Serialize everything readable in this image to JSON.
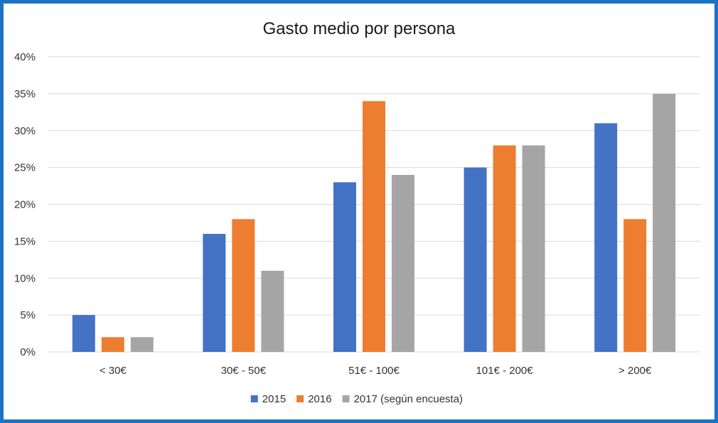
{
  "chart_data": {
    "type": "bar",
    "title": "Gasto medio por persona",
    "categories": [
      "< 30€",
      "30€ - 50€",
      "51€ - 100€",
      "101€ - 200€",
      "> 200€"
    ],
    "series": [
      {
        "name": "2015",
        "color": "#4472c4",
        "values": [
          5,
          16,
          23,
          25,
          31
        ]
      },
      {
        "name": "2016",
        "color": "#ed7d31",
        "values": [
          2,
          18,
          34,
          28,
          18
        ]
      },
      {
        "name": "2017 (según encuesta)",
        "color": "#a5a5a5",
        "values": [
          2,
          11,
          24,
          28,
          35
        ]
      }
    ],
    "yticks": [
      "0%",
      "5%",
      "10%",
      "15%",
      "20%",
      "25%",
      "30%",
      "35%",
      "40%"
    ],
    "ylim": [
      0,
      40
    ],
    "grid": true,
    "legend": "bottom",
    "frame_color": "#1a73c7"
  }
}
